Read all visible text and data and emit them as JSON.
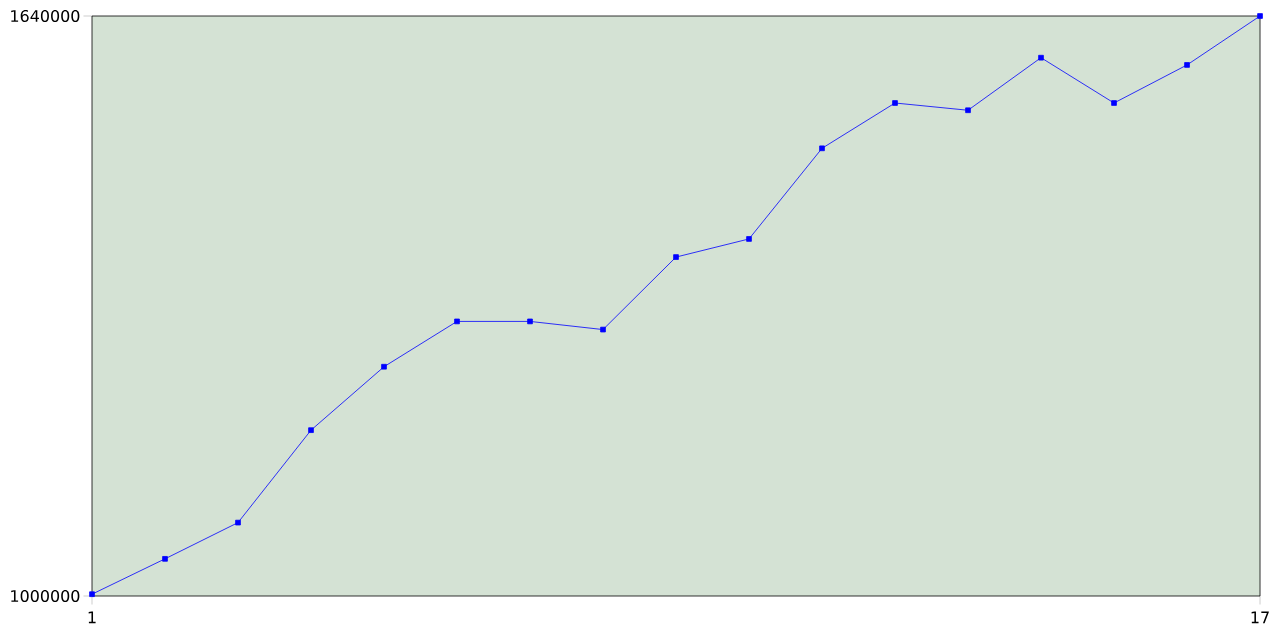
{
  "chart_data": {
    "type": "line",
    "x": [
      1,
      2,
      3,
      4,
      5,
      6,
      7,
      8,
      9,
      10,
      11,
      12,
      13,
      14,
      15,
      16,
      17
    ],
    "values": [
      1002000,
      1041000,
      1081000,
      1183000,
      1253000,
      1303000,
      1303000,
      1294000,
      1374000,
      1394000,
      1494000,
      1544000,
      1536000,
      1594000,
      1544000,
      1586000,
      1640000
    ],
    "color": "#0000ff",
    "marker": "square",
    "xlim": [
      1,
      17
    ],
    "ylim": [
      1000000,
      1640000
    ],
    "xticks": [
      1,
      17
    ],
    "yticks": [
      1000000,
      1640000
    ],
    "grid": false
  }
}
